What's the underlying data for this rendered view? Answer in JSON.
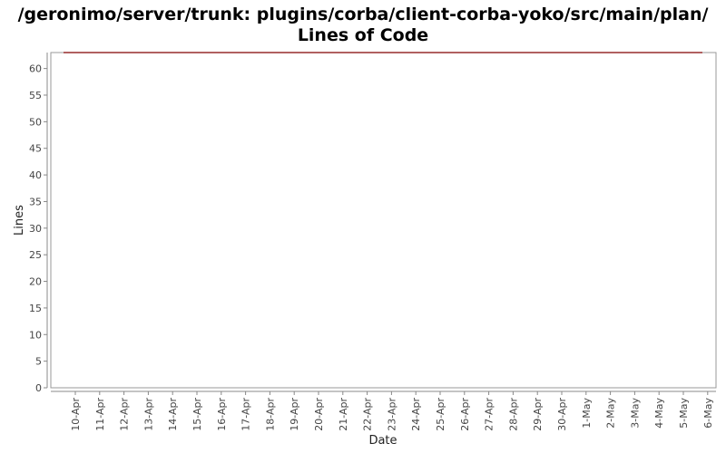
{
  "chart_data": {
    "type": "line",
    "title": [
      "/geronimo/server/trunk: plugins/corba/client-corba-yoko/src/main/plan/",
      "Lines of Code"
    ],
    "xlabel": "Date",
    "ylabel": "Lines",
    "x_ticks": [
      "10-Apr",
      "11-Apr",
      "12-Apr",
      "13-Apr",
      "14-Apr",
      "15-Apr",
      "16-Apr",
      "17-Apr",
      "18-Apr",
      "19-Apr",
      "20-Apr",
      "21-Apr",
      "22-Apr",
      "23-Apr",
      "24-Apr",
      "25-Apr",
      "26-Apr",
      "27-Apr",
      "28-Apr",
      "29-Apr",
      "30-Apr",
      "1-May",
      "2-May",
      "3-May",
      "4-May",
      "5-May",
      "6-May"
    ],
    "y_ticks": [
      0,
      5,
      10,
      15,
      20,
      25,
      30,
      35,
      40,
      45,
      50,
      55,
      60
    ],
    "ylim": [
      0,
      63
    ],
    "grid": false,
    "series": [
      {
        "values_x": [
          "09-Apr-end",
          "6-May"
        ],
        "x": [
          0,
          26
        ],
        "values": [
          63,
          63
        ],
        "color": "#800000"
      }
    ],
    "line_color": "#800000"
  }
}
